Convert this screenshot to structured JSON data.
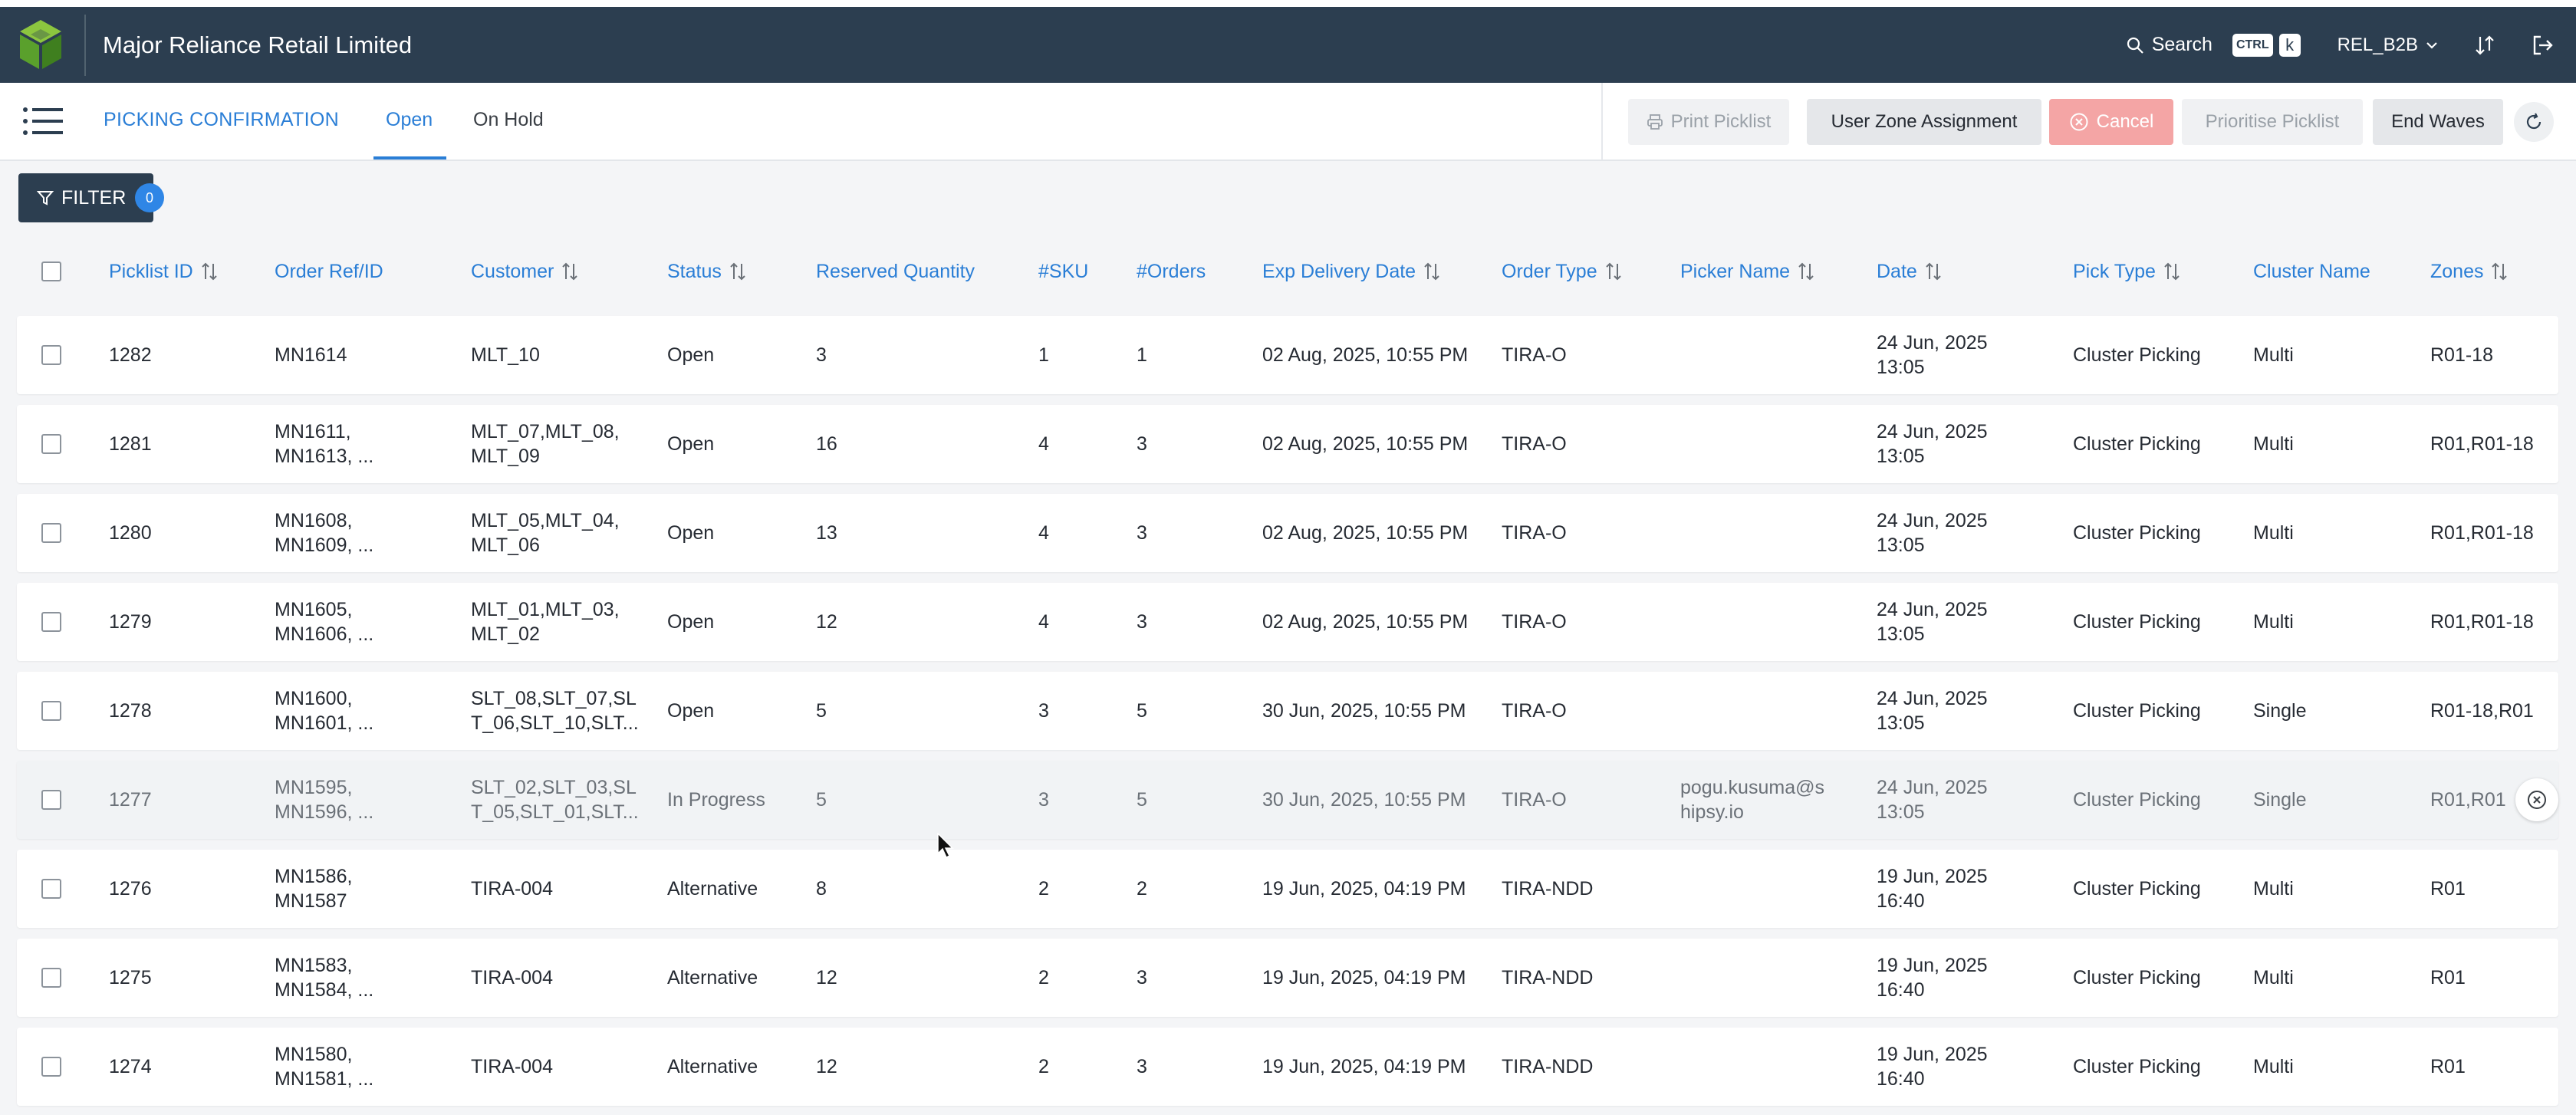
{
  "header": {
    "company": "Major Reliance Retail Limited",
    "search_label": "Search",
    "kbd_ctrl": "CTRL",
    "kbd_k": "k",
    "environment": "REL_B2B"
  },
  "subheader": {
    "title": "PICKING CONFIRMATION",
    "tabs": [
      {
        "label": "Open",
        "active": true
      },
      {
        "label": "On Hold",
        "active": false
      }
    ],
    "buttons": {
      "print": "Print Picklist",
      "zone": "User Zone Assignment",
      "cancel": "Cancel",
      "prioritise": "Prioritise Picklist",
      "end_waves": "End Waves"
    }
  },
  "filter": {
    "label": "FILTER",
    "count": "0"
  },
  "table": {
    "columns": [
      "Picklist ID",
      "Order Ref/ID",
      "Customer",
      "Status",
      "Reserved Quantity",
      "#SKU",
      "#Orders",
      "Exp Delivery Date",
      "Order Type",
      "Picker Name",
      "Date",
      "Pick Type",
      "Cluster Name",
      "Zones"
    ],
    "rows": [
      {
        "id": "1282",
        "order_ref": "MN1614",
        "customer": "MLT_10",
        "status": "Open",
        "reserved": "3",
        "sku": "1",
        "orders": "1",
        "exp_delivery": "02 Aug, 2025, 10:55 PM",
        "order_type": "TIRA-O",
        "picker": "",
        "date": "24 Jun, 2025 13:05",
        "pick_type": "Cluster Picking",
        "cluster": "Multi",
        "zones": "R01-18"
      },
      {
        "id": "1281",
        "order_ref": "MN1611, MN1613, ...",
        "customer": "MLT_07,MLT_08, MLT_09",
        "status": "Open",
        "reserved": "16",
        "sku": "4",
        "orders": "3",
        "exp_delivery": "02 Aug, 2025, 10:55 PM",
        "order_type": "TIRA-O",
        "picker": "",
        "date": "24 Jun, 2025 13:05",
        "pick_type": "Cluster Picking",
        "cluster": "Multi",
        "zones": "R01,R01-18"
      },
      {
        "id": "1280",
        "order_ref": "MN1608, MN1609, ...",
        "customer": "MLT_05,MLT_04, MLT_06",
        "status": "Open",
        "reserved": "13",
        "sku": "4",
        "orders": "3",
        "exp_delivery": "02 Aug, 2025, 10:55 PM",
        "order_type": "TIRA-O",
        "picker": "",
        "date": "24 Jun, 2025 13:05",
        "pick_type": "Cluster Picking",
        "cluster": "Multi",
        "zones": "R01,R01-18"
      },
      {
        "id": "1279",
        "order_ref": "MN1605, MN1606, ...",
        "customer": "MLT_01,MLT_03, MLT_02",
        "status": "Open",
        "reserved": "12",
        "sku": "4",
        "orders": "3",
        "exp_delivery": "02 Aug, 2025, 10:55 PM",
        "order_type": "TIRA-O",
        "picker": "",
        "date": "24 Jun, 2025 13:05",
        "pick_type": "Cluster Picking",
        "cluster": "Multi",
        "zones": "R01,R01-18"
      },
      {
        "id": "1278",
        "order_ref": "MN1600, MN1601, ...",
        "customer": "SLT_08,SLT_07,SL T_06,SLT_10,SLT...",
        "status": "Open",
        "reserved": "5",
        "sku": "3",
        "orders": "5",
        "exp_delivery": "30 Jun, 2025, 10:55 PM",
        "order_type": "TIRA-O",
        "picker": "",
        "date": "24 Jun, 2025 13:05",
        "pick_type": "Cluster Picking",
        "cluster": "Single",
        "zones": "R01-18,R01"
      },
      {
        "id": "1277",
        "order_ref": "MN1595, MN1596, ...",
        "customer": "SLT_02,SLT_03,SL T_05,SLT_01,SLT...",
        "status": "In Progress",
        "reserved": "5",
        "sku": "3",
        "orders": "5",
        "exp_delivery": "30 Jun, 2025, 10:55 PM",
        "order_type": "TIRA-O",
        "picker": "pogu.kusuma@s hipsy.io",
        "date": "24 Jun, 2025 13:05",
        "pick_type": "Cluster Picking",
        "cluster": "Single",
        "zones": "R01,R01"
      },
      {
        "id": "1276",
        "order_ref": "MN1586, MN1587",
        "customer": "TIRA-004",
        "status": "Alternative",
        "reserved": "8",
        "sku": "2",
        "orders": "2",
        "exp_delivery": "19 Jun, 2025, 04:19 PM",
        "order_type": "TIRA-NDD",
        "picker": "",
        "date": "19 Jun, 2025 16:40",
        "pick_type": "Cluster Picking",
        "cluster": "Multi",
        "zones": "R01"
      },
      {
        "id": "1275",
        "order_ref": "MN1583, MN1584, ...",
        "customer": "TIRA-004",
        "status": "Alternative",
        "reserved": "12",
        "sku": "2",
        "orders": "3",
        "exp_delivery": "19 Jun, 2025, 04:19 PM",
        "order_type": "TIRA-NDD",
        "picker": "",
        "date": "19 Jun, 2025 16:40",
        "pick_type": "Cluster Picking",
        "cluster": "Multi",
        "zones": "R01"
      },
      {
        "id": "1274",
        "order_ref": "MN1580, MN1581, ...",
        "customer": "TIRA-004",
        "status": "Alternative",
        "reserved": "12",
        "sku": "2",
        "orders": "3",
        "exp_delivery": "19 Jun, 2025, 04:19 PM",
        "order_type": "TIRA-NDD",
        "picker": "",
        "date": "19 Jun, 2025 16:40",
        "pick_type": "Cluster Picking",
        "cluster": "Multi",
        "zones": "R01"
      }
    ]
  }
}
